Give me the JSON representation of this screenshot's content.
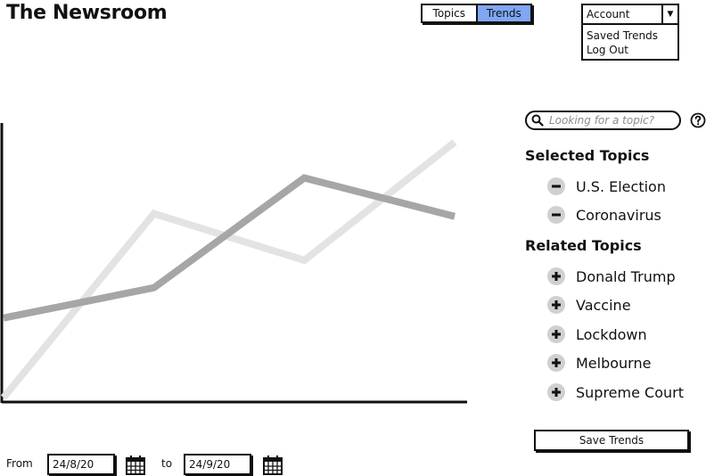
{
  "header": {
    "title": "The Newsroom",
    "tabs": [
      {
        "label": "Topics",
        "active": false
      },
      {
        "label": "Trends",
        "active": true
      }
    ],
    "account": {
      "label": "Account",
      "menu": [
        "Saved Trends",
        "Log Out"
      ]
    }
  },
  "search": {
    "placeholder": "Looking for a topic?"
  },
  "selected_topics": {
    "heading": "Selected Topics",
    "items": [
      "U.S. Election",
      "Coronavirus"
    ]
  },
  "related_topics": {
    "heading": "Related Topics",
    "items": [
      "Donald Trump",
      "Vaccine",
      "Lockdown",
      "Melbourne",
      "Supreme Court"
    ]
  },
  "save_button": "Save Trends",
  "date_range": {
    "from_label": "From",
    "from_value": "24/8/20",
    "to_label": "to",
    "to_value": "24/9/20"
  },
  "colors": {
    "accent": "#7fa7f5",
    "series_dark": "#a6a6a6",
    "series_light": "#e3e3e3"
  },
  "chart_data": {
    "type": "line",
    "x": [
      0,
      1,
      2,
      3
    ],
    "ylim": [
      0,
      100
    ],
    "series": [
      {
        "color": "#e3e3e3",
        "values": [
          0,
          67,
          50,
          93
        ]
      },
      {
        "color": "#a6a6a6",
        "values": [
          29,
          40,
          80,
          66
        ]
      }
    ],
    "grid": false
  }
}
